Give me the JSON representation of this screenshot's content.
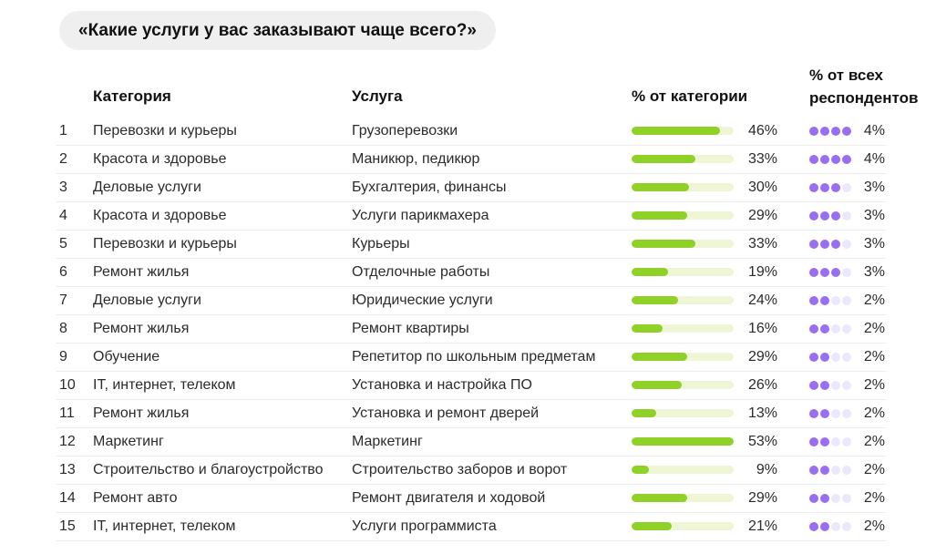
{
  "title": "«Какие услуги у вас заказывают чаще всего?»",
  "headers": {
    "category": "Категория",
    "service": "Услуга",
    "pct_category": "% от категории",
    "pct_respondents_line1": "% от всех",
    "pct_respondents_line2": "респондентов"
  },
  "colors": {
    "bar_fill": "#8fd126",
    "bar_track": "#eef6d6",
    "dot_on": "#9a6ef0",
    "dot_off": "#ece7fb",
    "title_bg": "#efefef"
  },
  "chart_data": {
    "type": "table",
    "columns": [
      "#",
      "Категория",
      "Услуга",
      "% от категории",
      "% от всех респондентов"
    ],
    "bar_max_percent": 53,
    "dots_max": 4,
    "rows": [
      {
        "num": "1",
        "category": "Перевозки и курьеры",
        "service": "Грузоперевозки",
        "pct_category": 46,
        "pct_category_label": "46%",
        "dots": 4,
        "pct_resp_label": "4%"
      },
      {
        "num": "2",
        "category": "Красота и здоровье",
        "service": "Маникюр, педикюр",
        "pct_category": 33,
        "pct_category_label": "33%",
        "dots": 4,
        "pct_resp_label": "4%"
      },
      {
        "num": "3",
        "category": "Деловые услуги",
        "service": "Бухгалтерия, финансы",
        "pct_category": 30,
        "pct_category_label": "30%",
        "dots": 3,
        "pct_resp_label": "3%"
      },
      {
        "num": "4",
        "category": "Красота и здоровье",
        "service": "Услуги парикмахера",
        "pct_category": 29,
        "pct_category_label": "29%",
        "dots": 3,
        "pct_resp_label": "3%"
      },
      {
        "num": "5",
        "category": "Перевозки и курьеры",
        "service": "Курьеры",
        "pct_category": 33,
        "pct_category_label": "33%",
        "dots": 3,
        "pct_resp_label": "3%"
      },
      {
        "num": "6",
        "category": "Ремонт жилья",
        "service": "Отделочные работы",
        "pct_category": 19,
        "pct_category_label": "19%",
        "dots": 3,
        "pct_resp_label": "3%"
      },
      {
        "num": "7",
        "category": "Деловые услуги",
        "service": "Юридические услуги",
        "pct_category": 24,
        "pct_category_label": "24%",
        "dots": 2,
        "pct_resp_label": "2%"
      },
      {
        "num": "8",
        "category": "Ремонт жилья",
        "service": "Ремонт квартиры",
        "pct_category": 16,
        "pct_category_label": "16%",
        "dots": 2,
        "pct_resp_label": "2%"
      },
      {
        "num": "9",
        "category": "Обучение",
        "service": "Репетитор по школьным предметам",
        "pct_category": 29,
        "pct_category_label": "29%",
        "dots": 2,
        "pct_resp_label": "2%"
      },
      {
        "num": "10",
        "category": "IT, интернет, телеком",
        "service": "Установка и настройка ПО",
        "pct_category": 26,
        "pct_category_label": "26%",
        "dots": 2,
        "pct_resp_label": "2%"
      },
      {
        "num": "11",
        "category": "Ремонт жилья",
        "service": "Установка и ремонт дверей",
        "pct_category": 13,
        "pct_category_label": "13%",
        "dots": 2,
        "pct_resp_label": "2%"
      },
      {
        "num": "12",
        "category": "Маркетинг",
        "service": "Маркетинг",
        "pct_category": 53,
        "pct_category_label": "53%",
        "dots": 2,
        "pct_resp_label": "2%"
      },
      {
        "num": "13",
        "category": "Строительство и благоустройство",
        "service": "Строительство заборов и ворот",
        "pct_category": 9,
        "pct_category_label": "9%",
        "dots": 2,
        "pct_resp_label": "2%"
      },
      {
        "num": "14",
        "category": "Ремонт авто",
        "service": "Ремонт двигателя и ходовой",
        "pct_category": 29,
        "pct_category_label": "29%",
        "dots": 2,
        "pct_resp_label": "2%"
      },
      {
        "num": "15",
        "category": "IT, интернет, телеком",
        "service": "Услуги программиста",
        "pct_category": 21,
        "pct_category_label": "21%",
        "dots": 2,
        "pct_resp_label": "2%"
      }
    ]
  }
}
